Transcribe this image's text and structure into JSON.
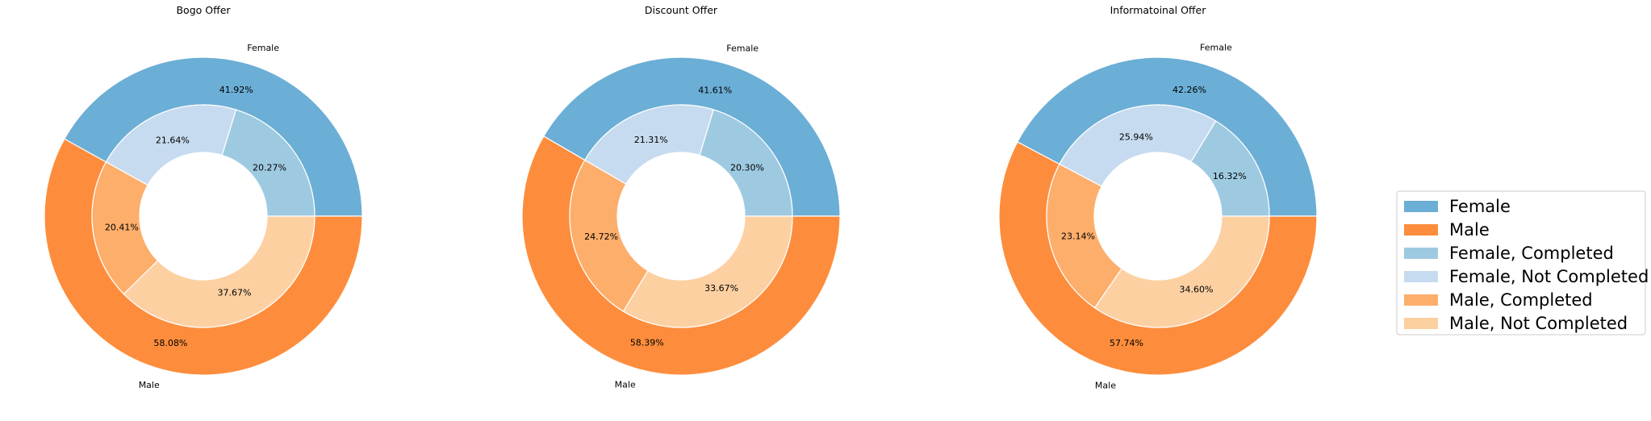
{
  "colors": {
    "female": "#6baed6",
    "male": "#fd8d3c",
    "female_completed": "#9ecae1",
    "female_not_completed": "#c6dbef",
    "male_completed": "#fdae6b",
    "male_not_completed": "#fdd0a2"
  },
  "chart_data": [
    {
      "type": "pie",
      "title": "Bogo Offer",
      "outer": [
        {
          "label": "Female",
          "value": 41.92,
          "text": "41.92%",
          "color_key": "female"
        },
        {
          "label": "Male",
          "value": 58.08,
          "text": "58.08%",
          "color_key": "male"
        }
      ],
      "inner": [
        {
          "label": "Female, Completed",
          "value": 20.27,
          "text": "20.27%",
          "color_key": "female_completed"
        },
        {
          "label": "Female, Not Completed",
          "value": 21.64,
          "text": "21.64%",
          "color_key": "female_not_completed"
        },
        {
          "label": "Male, Completed",
          "value": 20.41,
          "text": "20.41%",
          "color_key": "male_completed"
        },
        {
          "label": "Male, Not Completed",
          "value": 37.67,
          "text": "37.67%",
          "color_key": "male_not_completed"
        }
      ]
    },
    {
      "type": "pie",
      "title": "Discount Offer",
      "outer": [
        {
          "label": "Female",
          "value": 41.61,
          "text": "41.61%",
          "color_key": "female"
        },
        {
          "label": "Male",
          "value": 58.39,
          "text": "58.39%",
          "color_key": "male"
        }
      ],
      "inner": [
        {
          "label": "Female, Completed",
          "value": 20.3,
          "text": "20.30%",
          "color_key": "female_completed"
        },
        {
          "label": "Female, Not Completed",
          "value": 21.31,
          "text": "21.31%",
          "color_key": "female_not_completed"
        },
        {
          "label": "Male, Completed",
          "value": 24.72,
          "text": "24.72%",
          "color_key": "male_completed"
        },
        {
          "label": "Male, Not Completed",
          "value": 33.67,
          "text": "33.67%",
          "color_key": "male_not_completed"
        }
      ]
    },
    {
      "type": "pie",
      "title": "Informatoinal Offer",
      "outer": [
        {
          "label": "Female",
          "value": 42.26,
          "text": "42.26%",
          "color_key": "female"
        },
        {
          "label": "Male",
          "value": 57.74,
          "text": "57.74%",
          "color_key": "male"
        }
      ],
      "inner": [
        {
          "label": "Female, Completed",
          "value": 16.32,
          "text": "16.32%",
          "color_key": "female_completed"
        },
        {
          "label": "Female, Not Completed",
          "value": 25.94,
          "text": "25.94%",
          "color_key": "female_not_completed"
        },
        {
          "label": "Male, Completed",
          "value": 23.14,
          "text": "23.14%",
          "color_key": "male_completed"
        },
        {
          "label": "Male, Not Completed",
          "value": 34.6,
          "text": "34.60%",
          "color_key": "male_not_completed"
        }
      ]
    }
  ],
  "legend": {
    "placement": "right",
    "items": [
      {
        "label": "Female",
        "color_key": "female"
      },
      {
        "label": "Male",
        "color_key": "male"
      },
      {
        "label": "Female, Completed",
        "color_key": "female_completed"
      },
      {
        "label": "Female, Not Completed",
        "color_key": "female_not_completed"
      },
      {
        "label": "Male, Completed",
        "color_key": "male_completed"
      },
      {
        "label": "Male, Not Completed",
        "color_key": "male_not_completed"
      }
    ]
  }
}
